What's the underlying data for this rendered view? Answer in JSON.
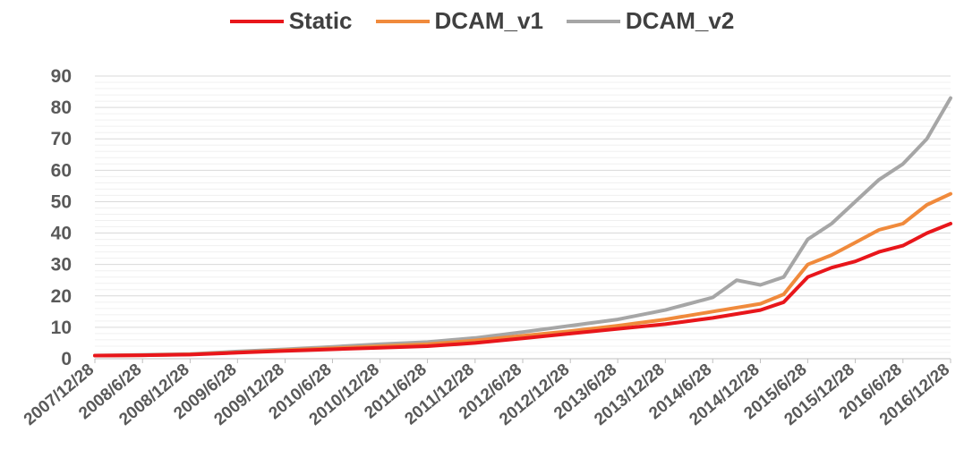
{
  "chart_data": {
    "type": "line",
    "title": "",
    "xlabel": "",
    "ylabel": "",
    "ylim": [
      0,
      90
    ],
    "yticks": [
      0,
      10,
      20,
      30,
      40,
      50,
      60,
      70,
      80,
      90
    ],
    "xlim": [
      "2007/12/28",
      "2016/12/28"
    ],
    "xtick_labels": [
      "2007/12/28",
      "2008/6/28",
      "2008/12/28",
      "2009/6/28",
      "2009/12/28",
      "2010/6/28",
      "2010/12/28",
      "2011/6/28",
      "2011/12/28",
      "2012/6/28",
      "2012/12/28",
      "2013/6/28",
      "2013/12/28",
      "2014/6/28",
      "2014/12/28",
      "2015/6/28",
      "2015/12/28",
      "2016/6/28",
      "2016/12/28"
    ],
    "grid": true,
    "legend_position": "top",
    "series": [
      {
        "name": "Static",
        "color": "#e8161b",
        "points": [
          [
            "2007/12/28",
            1.0
          ],
          [
            "2008/6/28",
            1.1
          ],
          [
            "2008/12/28",
            1.3
          ],
          [
            "2009/6/28",
            1.9
          ],
          [
            "2009/12/28",
            2.5
          ],
          [
            "2010/6/28",
            3.0
          ],
          [
            "2010/12/28",
            3.5
          ],
          [
            "2011/6/28",
            4.0
          ],
          [
            "2011/12/28",
            5.0
          ],
          [
            "2012/6/28",
            6.5
          ],
          [
            "2012/12/28",
            8.0
          ],
          [
            "2013/6/28",
            9.5
          ],
          [
            "2013/12/28",
            11.0
          ],
          [
            "2014/6/28",
            13.0
          ],
          [
            "2014/12/28",
            15.5
          ],
          [
            "2015/3/28",
            18.0
          ],
          [
            "2015/6/28",
            26.0
          ],
          [
            "2015/9/28",
            29.0
          ],
          [
            "2015/12/28",
            31.0
          ],
          [
            "2016/3/28",
            34.0
          ],
          [
            "2016/6/28",
            36.0
          ],
          [
            "2016/9/28",
            40.0
          ],
          [
            "2016/12/28",
            43.0
          ]
        ]
      },
      {
        "name": "DCAM_v1",
        "color": "#f08a3c",
        "points": [
          [
            "2007/12/28",
            1.0
          ],
          [
            "2008/6/28",
            1.1
          ],
          [
            "2008/12/28",
            1.4
          ],
          [
            "2009/6/28",
            2.0
          ],
          [
            "2009/12/28",
            2.7
          ],
          [
            "2010/6/28",
            3.3
          ],
          [
            "2010/12/28",
            4.0
          ],
          [
            "2011/6/28",
            4.6
          ],
          [
            "2011/12/28",
            5.8
          ],
          [
            "2012/6/28",
            7.3
          ],
          [
            "2012/12/28",
            8.8
          ],
          [
            "2013/6/28",
            10.5
          ],
          [
            "2013/12/28",
            12.5
          ],
          [
            "2014/6/28",
            15.0
          ],
          [
            "2014/12/28",
            17.5
          ],
          [
            "2015/3/28",
            20.5
          ],
          [
            "2015/6/28",
            30.0
          ],
          [
            "2015/9/28",
            33.0
          ],
          [
            "2015/12/28",
            37.0
          ],
          [
            "2016/3/28",
            41.0
          ],
          [
            "2016/6/28",
            43.0
          ],
          [
            "2016/9/28",
            49.0
          ],
          [
            "2016/12/28",
            52.5
          ]
        ]
      },
      {
        "name": "DCAM_v2",
        "color": "#a6a6a6",
        "points": [
          [
            "2007/12/28",
            1.0
          ],
          [
            "2008/6/28",
            1.2
          ],
          [
            "2008/12/28",
            1.5
          ],
          [
            "2009/6/28",
            2.3
          ],
          [
            "2009/12/28",
            3.0
          ],
          [
            "2010/6/28",
            3.8
          ],
          [
            "2010/12/28",
            4.6
          ],
          [
            "2011/6/28",
            5.3
          ],
          [
            "2011/12/28",
            6.6
          ],
          [
            "2012/6/28",
            8.5
          ],
          [
            "2012/12/28",
            10.5
          ],
          [
            "2013/6/28",
            12.5
          ],
          [
            "2013/12/28",
            15.5
          ],
          [
            "2014/6/28",
            19.5
          ],
          [
            "2014/9/28",
            25.0
          ],
          [
            "2014/12/28",
            23.5
          ],
          [
            "2015/3/28",
            26.0
          ],
          [
            "2015/6/28",
            38.0
          ],
          [
            "2015/9/28",
            43.0
          ],
          [
            "2015/12/28",
            50.0
          ],
          [
            "2016/3/28",
            57.0
          ],
          [
            "2016/6/28",
            62.0
          ],
          [
            "2016/9/28",
            70.0
          ],
          [
            "2016/12/28",
            83.0
          ]
        ]
      }
    ]
  }
}
